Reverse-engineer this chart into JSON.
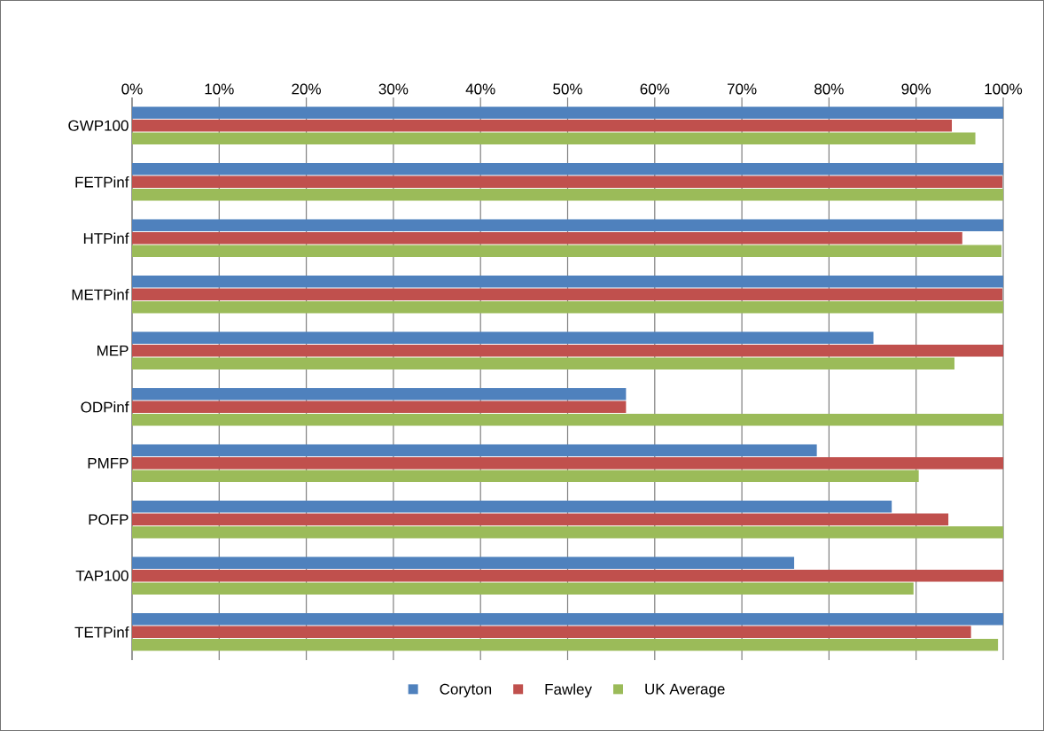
{
  "chart_data": {
    "type": "bar",
    "orientation": "horizontal",
    "categories": [
      "GWP100",
      "FETPinf",
      "HTPinf",
      "METPinf",
      "MEP",
      "ODPinf",
      "PMFP",
      "POFP",
      "TAP100",
      "TETPinf"
    ],
    "series": [
      {
        "name": "Coryton",
        "color": "#4f81bd",
        "values": [
          100,
          100,
          100,
          100,
          85.1,
          56.7,
          78.6,
          87.2,
          76.0,
          100
        ]
      },
      {
        "name": "Fawley",
        "color": "#c0504d",
        "values": [
          94.1,
          99.9,
          95.3,
          99.9,
          100,
          56.7,
          100,
          93.7,
          100,
          96.3
        ]
      },
      {
        "name": "UK Average",
        "color": "#9bbb59",
        "values": [
          96.8,
          100,
          99.8,
          100,
          94.4,
          100,
          90.3,
          100,
          89.7,
          99.4
        ]
      }
    ],
    "xlim": [
      0,
      100
    ],
    "xticks": [
      {
        "value": 0,
        "label": "0%"
      },
      {
        "value": 10,
        "label": "10%"
      },
      {
        "value": 20,
        "label": "20%"
      },
      {
        "value": 30,
        "label": "30%"
      },
      {
        "value": 40,
        "label": "40%"
      },
      {
        "value": 50,
        "label": "50%"
      },
      {
        "value": 60,
        "label": "60%"
      },
      {
        "value": 70,
        "label": "70%"
      },
      {
        "value": 80,
        "label": "80%"
      },
      {
        "value": 90,
        "label": "90%"
      },
      {
        "value": 100,
        "label": "100%"
      }
    ],
    "grid": "x",
    "legend": "bottom"
  }
}
